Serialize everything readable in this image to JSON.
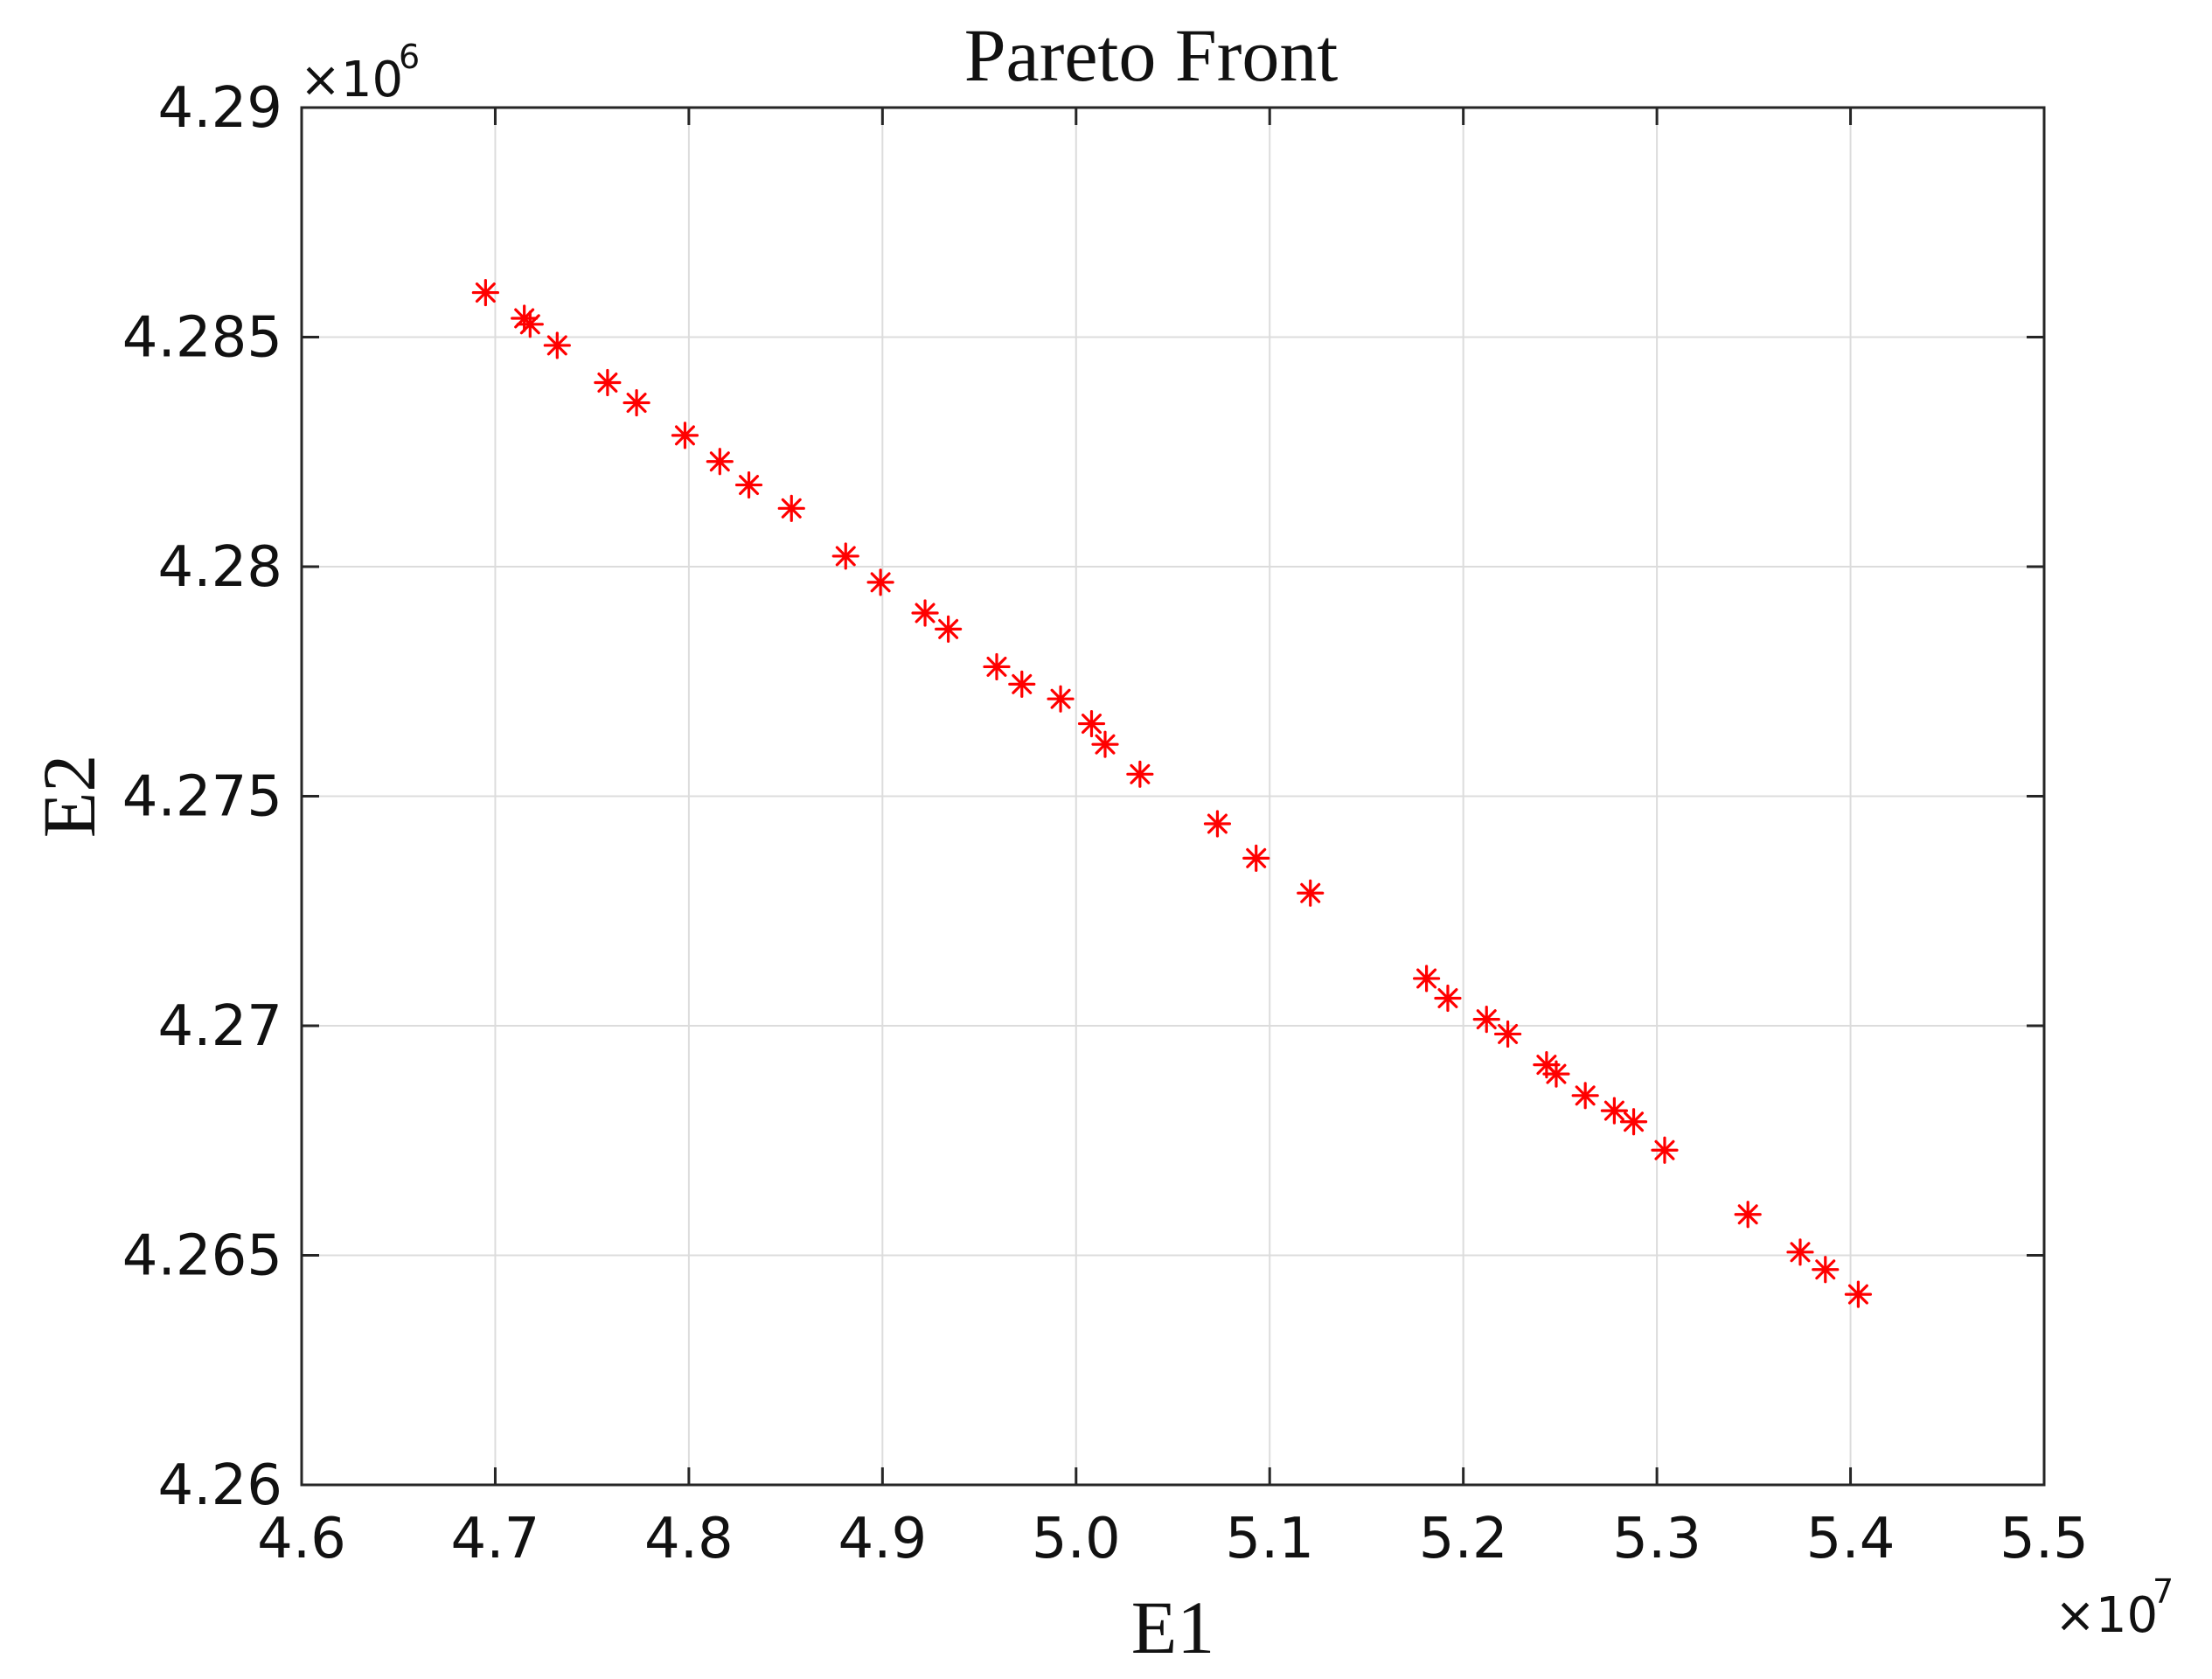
{
  "chart_data": {
    "type": "scatter",
    "title": "Pareto Front",
    "xlabel": "E1",
    "ylabel": "E2",
    "xlim": [
      46000000,
      55000000
    ],
    "ylim": [
      4260000,
      4290000
    ],
    "x_exponent_label": "×10",
    "x_exponent": "7",
    "y_exponent_label": "×10",
    "y_exponent": "6",
    "x_ticks": [
      46000000,
      47000000,
      48000000,
      49000000,
      50000000,
      51000000,
      52000000,
      53000000,
      54000000,
      55000000
    ],
    "x_tick_labels": [
      "4.6",
      "4.7",
      "4.8",
      "4.9",
      "5.0",
      "5.1",
      "5.2",
      "5.3",
      "5.4",
      "5.5"
    ],
    "y_ticks": [
      4260000,
      4265000,
      4270000,
      4275000,
      4280000,
      4285000,
      4290000
    ],
    "y_tick_labels": [
      "4.26",
      "4.265",
      "4.27",
      "4.275",
      "4.28",
      "4.285",
      "4.29"
    ],
    "grid": true,
    "marker": "asterisk",
    "series": [
      {
        "color": "#ff0000",
        "points": [
          [
            46950000,
            4285970
          ],
          [
            47150000,
            4285410
          ],
          [
            47180000,
            4285280
          ],
          [
            47320000,
            4284820
          ],
          [
            47580000,
            4284010
          ],
          [
            47730000,
            4283570
          ],
          [
            47980000,
            4282860
          ],
          [
            48160000,
            4282290
          ],
          [
            48310000,
            4281780
          ],
          [
            48530000,
            4281270
          ],
          [
            48810000,
            4280230
          ],
          [
            48990000,
            4279660
          ],
          [
            49220000,
            4278990
          ],
          [
            49340000,
            4278640
          ],
          [
            49590000,
            4277820
          ],
          [
            49720000,
            4277440
          ],
          [
            49920000,
            4277120
          ],
          [
            50080000,
            4276580
          ],
          [
            50150000,
            4276130
          ],
          [
            50330000,
            4275480
          ],
          [
            50730000,
            4274400
          ],
          [
            50930000,
            4273650
          ],
          [
            51210000,
            4272890
          ],
          [
            51810000,
            4271030
          ],
          [
            51920000,
            4270600
          ],
          [
            52120000,
            4270140
          ],
          [
            52230000,
            4269820
          ],
          [
            52430000,
            4269150
          ],
          [
            52480000,
            4268950
          ],
          [
            52630000,
            4268480
          ],
          [
            52780000,
            4268150
          ],
          [
            52880000,
            4267910
          ],
          [
            53040000,
            4267290
          ],
          [
            53470000,
            4265890
          ],
          [
            53740000,
            4265070
          ],
          [
            53870000,
            4264690
          ],
          [
            54040000,
            4264150
          ]
        ]
      }
    ],
    "colors": {
      "marker": "#ff0000",
      "axis": "#262626",
      "grid": "#dcdcdc"
    }
  }
}
